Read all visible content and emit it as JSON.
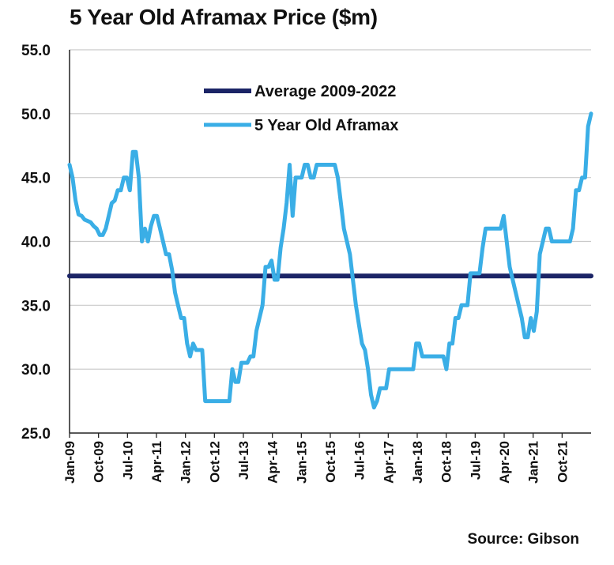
{
  "chart_data": {
    "type": "line",
    "title": "5 Year Old Aframax Price ($m)",
    "xlabel": "",
    "ylabel": "",
    "ylim": [
      25,
      55
    ],
    "y_ticks": [
      "55.0",
      "50.0",
      "45.0",
      "40.0",
      "35.0",
      "30.0",
      "25.0"
    ],
    "x_ticks": [
      "Jan-09",
      "Oct-09",
      "Jul-10",
      "Apr-11",
      "Jan-12",
      "Oct-12",
      "Jul-13",
      "Apr-14",
      "Jan-15",
      "Oct-15",
      "Jul-16",
      "Apr-17",
      "Jan-18",
      "Oct-18",
      "Jul-19",
      "Apr-20",
      "Jan-21",
      "Oct-21"
    ],
    "grid": "horizontal",
    "legend_position": "top-center",
    "series": [
      {
        "name": "Average 2009-2022",
        "color": "#1b2466",
        "values": [
          37.3,
          37.3
        ]
      },
      {
        "name": "5 Year Old Aframax",
        "color": "#3aaee6",
        "values": [
          46,
          45,
          43.2,
          42.1,
          42,
          41.7,
          41.6,
          41.5,
          41.2,
          41,
          40.5,
          40.5,
          41,
          42,
          43,
          43.2,
          44,
          44,
          45,
          45,
          44,
          47,
          47,
          45,
          40,
          41,
          40,
          41.2,
          42,
          42,
          41,
          40,
          39,
          39,
          37.8,
          36,
          35,
          34,
          34,
          32,
          31,
          32,
          31.5,
          31.5,
          31.5,
          27.5,
          27.5,
          27.5,
          27.5,
          27.5,
          27.5,
          27.5,
          27.5,
          27.5,
          30,
          29,
          29,
          30.5,
          30.5,
          30.5,
          31,
          31,
          33,
          34,
          35,
          38,
          38,
          38.5,
          37,
          37,
          39.5,
          41,
          43,
          46,
          42,
          45,
          45,
          45,
          46,
          46,
          45,
          45,
          46,
          46,
          46,
          46,
          46,
          46,
          46,
          45,
          43,
          41,
          40,
          39,
          37,
          35,
          33.5,
          32,
          31.5,
          30,
          28,
          27,
          27.5,
          28.5,
          28.5,
          28.5,
          30,
          30,
          30,
          30,
          30,
          30,
          30,
          30,
          30,
          32,
          32,
          31,
          31,
          31,
          31,
          31,
          31,
          31,
          31,
          30,
          32,
          32,
          34,
          34,
          35,
          35,
          35,
          37.5,
          37.5,
          37.5,
          37.5,
          39.5,
          41,
          41,
          41,
          41,
          41,
          41,
          42,
          40,
          38,
          37,
          36,
          35,
          34,
          32.5,
          32.5,
          34,
          33,
          34.5,
          39,
          40,
          41,
          41,
          40,
          40,
          40,
          40,
          40,
          40,
          40,
          41,
          44,
          44,
          45,
          45,
          49,
          50
        ]
      }
    ]
  },
  "source": "Source: Gibson"
}
